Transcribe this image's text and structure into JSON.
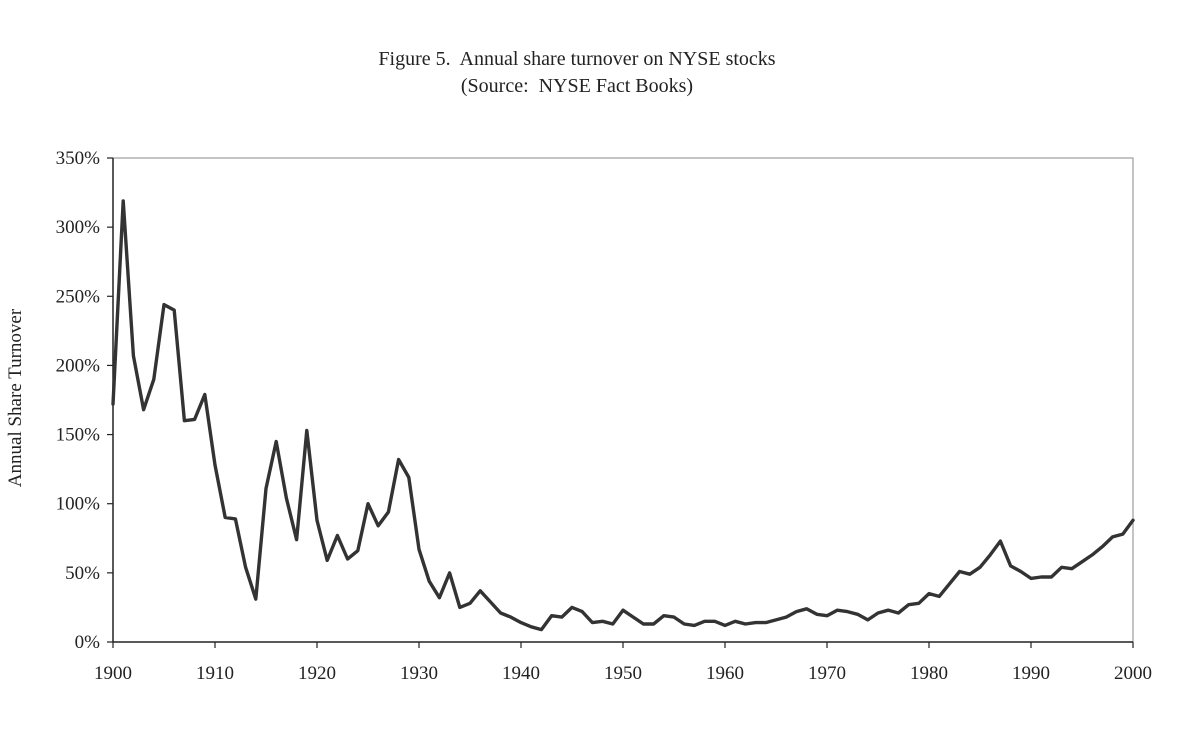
{
  "chart_data": {
    "type": "line",
    "title": "Figure 5.  Annual share turnover on NYSE stocks",
    "subtitle": "(Source:  NYSE Fact Books)",
    "xlabel": "",
    "ylabel": "Annual Share Turnover",
    "xlim": [
      1900,
      2000
    ],
    "ylim": [
      0,
      350
    ],
    "xticks": [
      1900,
      1910,
      1920,
      1930,
      1940,
      1950,
      1960,
      1970,
      1980,
      1990,
      2000
    ],
    "yticks": [
      {
        "value": 0,
        "label": "0%"
      },
      {
        "value": 50,
        "label": "50%"
      },
      {
        "value": 100,
        "label": "100%"
      },
      {
        "value": 150,
        "label": "150%"
      },
      {
        "value": 200,
        "label": "200%"
      },
      {
        "value": 250,
        "label": "250%"
      },
      {
        "value": 300,
        "label": "300%"
      },
      {
        "value": 350,
        "label": "350%"
      }
    ],
    "grid": false,
    "legend": "none",
    "line_color": "#333333",
    "x": [
      1900,
      1901,
      1902,
      1903,
      1904,
      1905,
      1906,
      1907,
      1908,
      1909,
      1910,
      1911,
      1912,
      1913,
      1914,
      1915,
      1916,
      1917,
      1918,
      1919,
      1920,
      1921,
      1922,
      1923,
      1924,
      1925,
      1926,
      1927,
      1928,
      1929,
      1930,
      1931,
      1932,
      1933,
      1934,
      1935,
      1936,
      1937,
      1938,
      1939,
      1940,
      1941,
      1942,
      1943,
      1944,
      1945,
      1946,
      1947,
      1948,
      1949,
      1950,
      1951,
      1952,
      1953,
      1954,
      1955,
      1956,
      1957,
      1958,
      1959,
      1960,
      1961,
      1962,
      1963,
      1964,
      1965,
      1966,
      1967,
      1968,
      1969,
      1970,
      1971,
      1972,
      1973,
      1974,
      1975,
      1976,
      1977,
      1978,
      1979,
      1980,
      1981,
      1982,
      1983,
      1984,
      1985,
      1986,
      1987,
      1988,
      1989,
      1990,
      1991,
      1992,
      1993,
      1994,
      1995,
      1996,
      1997,
      1998,
      1999,
      2000
    ],
    "values": [
      172,
      319,
      207,
      168,
      190,
      244,
      240,
      160,
      161,
      179,
      128,
      90,
      89,
      54,
      31,
      111,
      145,
      104,
      74,
      153,
      88,
      59,
      77,
      60,
      66,
      100,
      84,
      94,
      132,
      119,
      67,
      44,
      32,
      50,
      25,
      28,
      37,
      29,
      21,
      18,
      14,
      11,
      9,
      19,
      18,
      25,
      22,
      14,
      15,
      13,
      23,
      18,
      13,
      13,
      19,
      18,
      13,
      12,
      15,
      15,
      12,
      15,
      13,
      14,
      14,
      16,
      18,
      22,
      24,
      20,
      19,
      23,
      22,
      20,
      16,
      21,
      23,
      21,
      27,
      28,
      35,
      33,
      42,
      51,
      49,
      54,
      63,
      73,
      55,
      51,
      46,
      47,
      47,
      54,
      53,
      58,
      63,
      69,
      76,
      78,
      88
    ]
  }
}
